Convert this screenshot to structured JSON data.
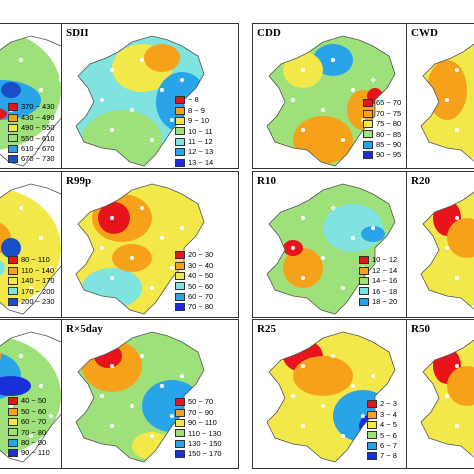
{
  "panels": [
    {
      "id": "p-r1c1",
      "title": "",
      "legend": [
        {
          "label": "370 ~ 430",
          "color": "#e8141c"
        },
        {
          "label": "430 ~ 490",
          "color": "#f5a21a"
        },
        {
          "label": "490 ~ 550",
          "color": "#f2e84a"
        },
        {
          "label": "550 ~ 610",
          "color": "#9ee07a"
        },
        {
          "label": "610 ~ 670",
          "color": "#2aa4e8"
        },
        {
          "label": "670 ~ 730",
          "color": "#1a4ec8"
        }
      ]
    },
    {
      "id": "p-r1c2",
      "title": "SDII",
      "legend": [
        {
          "label": "~ 8",
          "color": "#e8141c"
        },
        {
          "label": "8 ~ 9",
          "color": "#f5a21a"
        },
        {
          "label": "9 ~ 10",
          "color": "#f2e84a"
        },
        {
          "label": "10 ~ 11",
          "color": "#9ee07a"
        },
        {
          "label": "11 ~ 12",
          "color": "#7fe3e0"
        },
        {
          "label": "12 ~ 13",
          "color": "#2aa4e8"
        },
        {
          "label": "13 ~ 14",
          "color": "#1a2fd8"
        }
      ]
    },
    {
      "id": "p-r1c3",
      "title": "CDD",
      "legend": [
        {
          "label": "65 ~ 70",
          "color": "#e8141c"
        },
        {
          "label": "70 ~ 75",
          "color": "#f5a21a"
        },
        {
          "label": "75 ~ 80",
          "color": "#f2e84a"
        },
        {
          "label": "80 ~ 85",
          "color": "#9ee07a"
        },
        {
          "label": "85 ~ 90",
          "color": "#2aa4e8"
        },
        {
          "label": "90 ~ 95",
          "color": "#1a2fd8"
        }
      ]
    },
    {
      "id": "p-r1c4",
      "title": "CWD",
      "legend": []
    },
    {
      "id": "p-r2c1",
      "title": "",
      "legend": [
        {
          "label": "80 ~ 110",
          "color": "#e8141c"
        },
        {
          "label": "110 ~ 140",
          "color": "#f5a21a"
        },
        {
          "label": "140 ~ 170",
          "color": "#f2e84a"
        },
        {
          "label": "170 ~ 200",
          "color": "#7fe3e0"
        },
        {
          "label": "200 ~ 230",
          "color": "#1a4ec8"
        }
      ]
    },
    {
      "id": "p-r2c2",
      "title": "R99p",
      "legend": [
        {
          "label": "20 ~ 30",
          "color": "#e8141c"
        },
        {
          "label": "30 ~ 40",
          "color": "#f5a21a"
        },
        {
          "label": "40 ~ 50",
          "color": "#f2e84a"
        },
        {
          "label": "50 ~ 60",
          "color": "#7fe3e0"
        },
        {
          "label": "60 ~ 70",
          "color": "#2aa4e8"
        },
        {
          "label": "70 ~ 80",
          "color": "#1a2fd8"
        }
      ]
    },
    {
      "id": "p-r2c3",
      "title": "R10",
      "legend": [
        {
          "label": "10 ~ 12",
          "color": "#e8141c"
        },
        {
          "label": "12 ~ 14",
          "color": "#f5a21a"
        },
        {
          "label": "14 ~ 16",
          "color": "#9ee07a"
        },
        {
          "label": "16 ~ 18",
          "color": "#7fe3e0"
        },
        {
          "label": "18 ~ 20",
          "color": "#2aa4e8"
        }
      ]
    },
    {
      "id": "p-r2c4",
      "title": "R20",
      "legend": []
    },
    {
      "id": "p-r3c1",
      "title": "",
      "legend": [
        {
          "label": "40 ~ 50",
          "color": "#e8141c"
        },
        {
          "label": "50 ~ 60",
          "color": "#f5a21a"
        },
        {
          "label": "60 ~ 70",
          "color": "#f2e84a"
        },
        {
          "label": "70 ~ 80",
          "color": "#9ee07a"
        },
        {
          "label": "80 ~ 90",
          "color": "#2aa4e8"
        },
        {
          "label": "90 ~ 110",
          "color": "#1a2fd8"
        }
      ]
    },
    {
      "id": "p-r3c2",
      "title": "R×5day",
      "legend": [
        {
          "label": "50 ~ 70",
          "color": "#e8141c"
        },
        {
          "label": "70 ~ 90",
          "color": "#f5a21a"
        },
        {
          "label": "90 ~ 110",
          "color": "#f2e84a"
        },
        {
          "label": "110 ~ 130",
          "color": "#9ee07a"
        },
        {
          "label": "130 ~ 150",
          "color": "#2aa4e8"
        },
        {
          "label": "150 ~ 170",
          "color": "#1a2fd8"
        }
      ]
    },
    {
      "id": "p-r3c3",
      "title": "R25",
      "legend": [
        {
          "label": "2 ~ 3",
          "color": "#e8141c"
        },
        {
          "label": "3 ~ 4",
          "color": "#f5a21a"
        },
        {
          "label": "4 ~ 5",
          "color": "#f2e84a"
        },
        {
          "label": "5 ~ 6",
          "color": "#9ee07a"
        },
        {
          "label": "6 ~ 7",
          "color": "#2aa4e8"
        },
        {
          "label": "7 ~ 8",
          "color": "#1a2fd8"
        }
      ]
    },
    {
      "id": "p-r3c4",
      "title": "R50",
      "legend": []
    }
  ]
}
